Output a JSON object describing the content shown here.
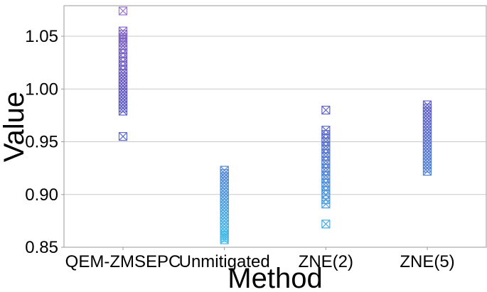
{
  "figure": {
    "background": "#ffffff",
    "border_color": "#9a9a9a",
    "grid_color": "#c9c9c9",
    "tick_color": "#9a9a9a",
    "text_color": "#000000"
  },
  "chart_data": {
    "type": "scatter",
    "variant": "categorical-strip-plot",
    "title": "",
    "xlabel": "Method",
    "ylabel": "Value",
    "categories": [
      "QEM-ZMSEPC",
      "Unmitigated",
      "ZNE(2)",
      "ZNE(5)"
    ],
    "ylim": [
      0.85,
      1.079
    ],
    "yticks": [
      0.85,
      0.9,
      0.95,
      1.0,
      1.05
    ],
    "ytick_labels": [
      "0.85",
      "0.90",
      "0.95",
      "1.00",
      "1.05"
    ],
    "grid": "horizontal",
    "legend": "none",
    "marker": "square-x",
    "marker_size_px": 11,
    "colormap": {
      "name": "value-mapped cyan-to-purple",
      "stops": [
        {
          "v": 0.85,
          "c": "#3FC0EA"
        },
        {
          "v": 0.9,
          "c": "#4D95DA"
        },
        {
          "v": 0.95,
          "c": "#5A6FCB"
        },
        {
          "v": 1.0,
          "c": "#6659C0"
        },
        {
          "v": 1.05,
          "c": "#8166C6"
        },
        {
          "v": 1.08,
          "c": "#A27CD0"
        }
      ]
    },
    "series": [
      {
        "name": "QEM-ZMSEPC",
        "values": [
          1.074,
          1.055,
          1.052,
          1.049,
          1.047,
          1.044,
          1.041,
          1.038,
          1.034,
          1.03,
          1.026,
          1.022,
          1.018,
          1.015,
          1.012,
          1.009,
          1.006,
          1.003,
          1.0,
          0.997,
          0.994,
          0.991,
          0.988,
          0.985,
          0.982,
          0.979,
          0.955
        ]
      },
      {
        "name": "Unmitigated",
        "values": [
          0.923,
          0.92,
          0.917,
          0.914,
          0.911,
          0.908,
          0.905,
          0.902,
          0.899,
          0.896,
          0.893,
          0.89,
          0.887,
          0.884,
          0.881,
          0.878,
          0.875,
          0.872,
          0.869,
          0.866,
          0.863,
          0.861,
          0.859,
          0.857
        ]
      },
      {
        "name": "ZNE(2)",
        "values": [
          0.98,
          0.961,
          0.957,
          0.953,
          0.95,
          0.946,
          0.943,
          0.939,
          0.936,
          0.932,
          0.929,
          0.925,
          0.922,
          0.918,
          0.915,
          0.911,
          0.908,
          0.904,
          0.9,
          0.895,
          0.891,
          0.872
        ]
      },
      {
        "name": "ZNE(5)",
        "values": [
          0.985,
          0.982,
          0.979,
          0.976,
          0.973,
          0.97,
          0.967,
          0.964,
          0.961,
          0.958,
          0.955,
          0.952,
          0.949,
          0.946,
          0.943,
          0.94,
          0.937,
          0.934,
          0.931,
          0.928,
          0.925,
          0.922
        ]
      }
    ]
  }
}
